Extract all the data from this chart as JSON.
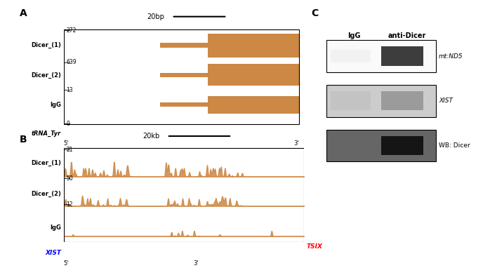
{
  "panel_A": {
    "title": "20bp",
    "fill_color": "#CC8844",
    "track_labels": [
      "Dicer_(1)",
      "Dicer_(2)",
      "IgG"
    ],
    "gene_label": "tRNA_Tyr",
    "scale_labels": [
      "272",
      "639",
      "13",
      "0"
    ]
  },
  "panel_B": {
    "title": "20kb",
    "fill_color": "#CC8844",
    "track_labels": [
      "Dicer_(1)",
      "Dicer_(2)",
      "IgG"
    ],
    "scale_labels": [
      "21",
      "50",
      "12"
    ],
    "xist_label": "XIST",
    "tsix_label": "TSIX",
    "xist_color": "#0000FF",
    "tsix_color": "#FF0000"
  },
  "panel_C": {
    "header1": "IgG",
    "header2": "anti-Dicer",
    "row_labels": [
      "mt:ND5",
      "XIST",
      "WB: Dicer"
    ],
    "bg_colors": [
      "#FAFAFA",
      "#CCCCCC",
      "#666666"
    ],
    "band_right_colors": [
      "#333333",
      "#999999",
      "#111111"
    ]
  },
  "label_A": "A",
  "label_B": "B",
  "label_C": "C",
  "bg_color": "#FFFFFF"
}
